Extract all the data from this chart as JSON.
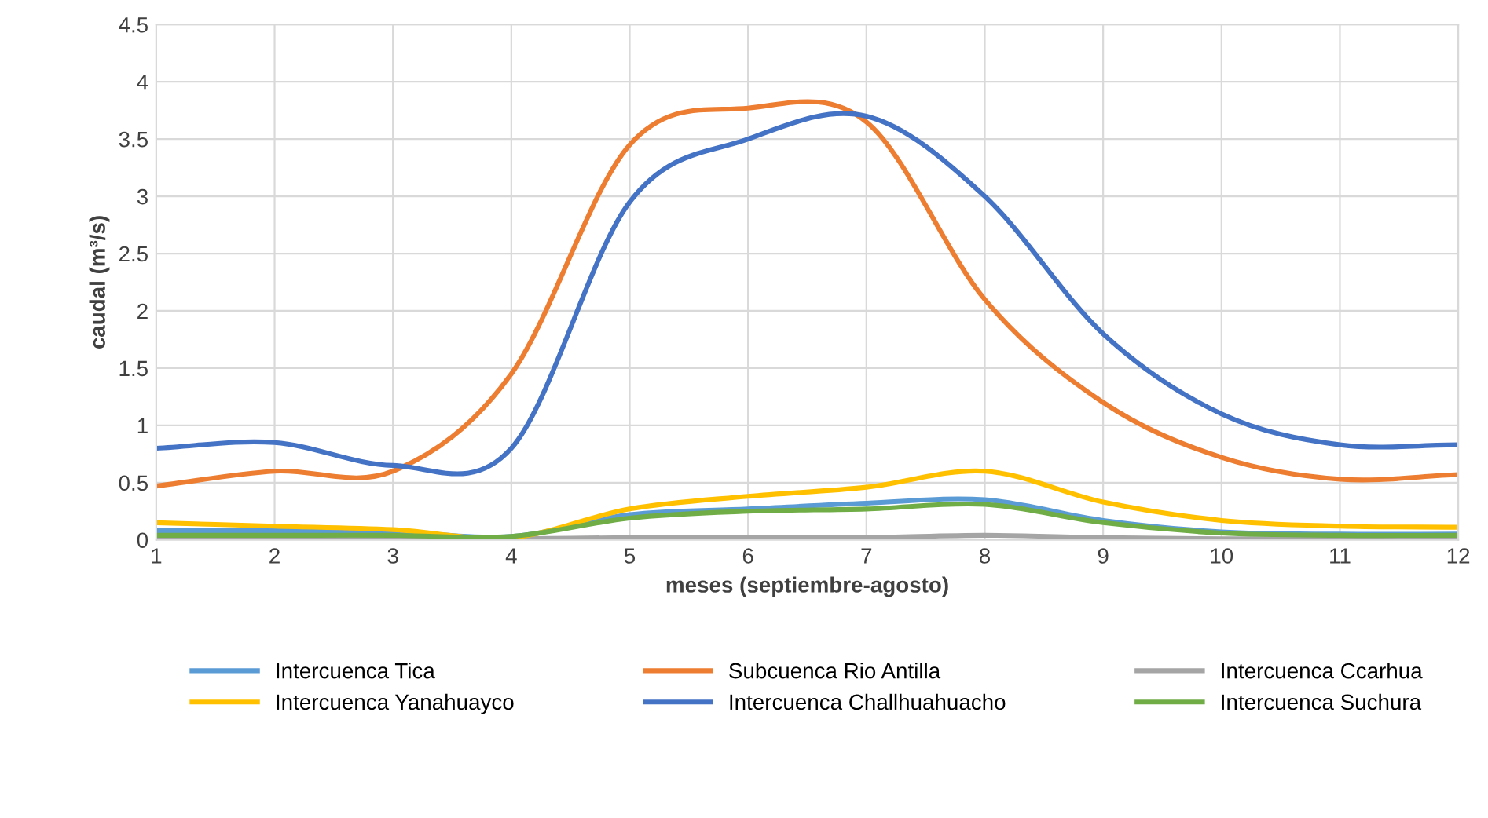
{
  "chart_data": {
    "type": "line",
    "xlabel": "meses (septiembre-agosto)",
    "ylabel": "caudal (m³/s)",
    "x": [
      1,
      2,
      3,
      4,
      5,
      6,
      7,
      8,
      9,
      10,
      11,
      12
    ],
    "series": [
      {
        "name": "Intercuenca Tica",
        "color": "#5b9bd5",
        "values": [
          0.08,
          0.08,
          0.07,
          0.03,
          0.22,
          0.27,
          0.32,
          0.35,
          0.17,
          0.07,
          0.05,
          0.05
        ]
      },
      {
        "name": "Subcuenca Rio Antilla",
        "color": "#ed7d31",
        "values": [
          0.47,
          0.6,
          0.6,
          1.45,
          3.45,
          3.77,
          3.65,
          2.1,
          1.2,
          0.72,
          0.53,
          0.57
        ]
      },
      {
        "name": "Intercuenca Ccarhua",
        "color": "#a5a5a5",
        "values": [
          0.01,
          0.01,
          0.01,
          0.01,
          0.02,
          0.02,
          0.02,
          0.04,
          0.02,
          0.01,
          0.01,
          0.01
        ]
      },
      {
        "name": "Intercuenca Yanahuayco",
        "color": "#ffc000",
        "values": [
          0.15,
          0.12,
          0.09,
          0.02,
          0.27,
          0.38,
          0.46,
          0.6,
          0.33,
          0.17,
          0.12,
          0.11
        ]
      },
      {
        "name": "Intercuenca Challhuahuacho",
        "color": "#4472c4",
        "values": [
          0.8,
          0.85,
          0.65,
          0.8,
          2.95,
          3.5,
          3.7,
          3.0,
          1.8,
          1.1,
          0.83,
          0.83
        ]
      },
      {
        "name": "Intercuenca Suchura",
        "color": "#70ad47",
        "values": [
          0.04,
          0.04,
          0.04,
          0.03,
          0.19,
          0.25,
          0.27,
          0.31,
          0.15,
          0.06,
          0.04,
          0.04
        ]
      }
    ],
    "xlim": [
      1,
      12
    ],
    "xticks": [
      1,
      2,
      3,
      4,
      5,
      6,
      7,
      8,
      9,
      10,
      11,
      12
    ],
    "ylim": [
      0,
      4.5
    ],
    "yticks": [
      0,
      0.5,
      1,
      1.5,
      2,
      2.5,
      3,
      3.5,
      4,
      4.5
    ],
    "grid": true,
    "legend": "bottom",
    "marker": "none",
    "line_style": "solid"
  }
}
